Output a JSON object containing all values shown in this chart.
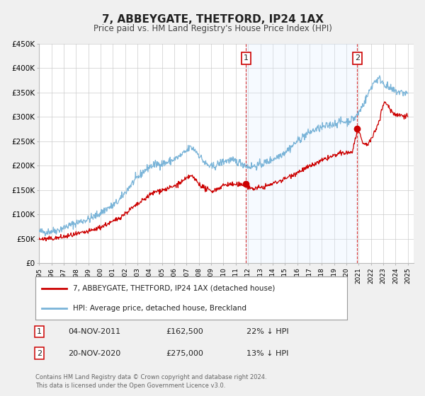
{
  "title": "7, ABBEYGATE, THETFORD, IP24 1AX",
  "subtitle": "Price paid vs. HM Land Registry's House Price Index (HPI)",
  "bg_color": "#f0f0f0",
  "plot_bg_color": "#ffffff",
  "grid_color": "#cccccc",
  "hpi_color": "#7ab4d8",
  "price_color": "#cc0000",
  "shade_color": "#ddeeff",
  "ylim": [
    0,
    450000
  ],
  "yticks": [
    0,
    50000,
    100000,
    150000,
    200000,
    250000,
    300000,
    350000,
    400000,
    450000
  ],
  "ytick_labels": [
    "£0",
    "£50K",
    "£100K",
    "£150K",
    "£200K",
    "£250K",
    "£300K",
    "£350K",
    "£400K",
    "£450K"
  ],
  "xlim_start": 1995.0,
  "xlim_end": 2025.5,
  "sale1_x": 2011.84,
  "sale1_y": 162500,
  "sale1_label": "1",
  "sale1_date": "04-NOV-2011",
  "sale1_price": "£162,500",
  "sale1_hpi": "22% ↓ HPI",
  "sale2_x": 2020.89,
  "sale2_y": 275000,
  "sale2_label": "2",
  "sale2_date": "20-NOV-2020",
  "sale2_price": "£275,000",
  "sale2_hpi": "13% ↓ HPI",
  "legend_line1": "7, ABBEYGATE, THETFORD, IP24 1AX (detached house)",
  "legend_line2": "HPI: Average price, detached house, Breckland",
  "footer1": "Contains HM Land Registry data © Crown copyright and database right 2024.",
  "footer2": "This data is licensed under the Open Government Licence v3.0."
}
